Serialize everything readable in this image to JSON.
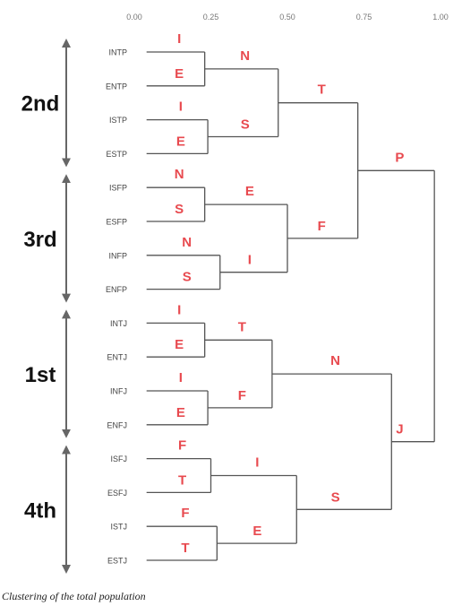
{
  "caption": "Clustering of the total population",
  "chart_data": {
    "type": "dendrogram",
    "xlim": [
      0,
      1
    ],
    "x_ticks": [
      "0.00",
      "0.25",
      "0.50",
      "0.75",
      "1.00"
    ],
    "leaves": [
      "INTP",
      "ENTP",
      "ISTP",
      "ESTP",
      "ISFP",
      "ESFP",
      "INFP",
      "ENFP",
      "INTJ",
      "ENTJ",
      "INFJ",
      "ENFJ",
      "ISFJ",
      "ESFJ",
      "ISTJ",
      "ESTJ"
    ],
    "merges": [
      {
        "id": "m1",
        "left": "INTP",
        "right": "ENTP",
        "height": 0.23,
        "label_top": "I",
        "label_bottom": "E"
      },
      {
        "id": "m2",
        "left": "ISTP",
        "right": "ESTP",
        "height": 0.24,
        "label_top": "I",
        "label_bottom": "E"
      },
      {
        "id": "m3",
        "left": "ISFP",
        "right": "ESFP",
        "height": 0.23,
        "label_top": "N",
        "label_bottom": "S"
      },
      {
        "id": "m4",
        "left": "INFP",
        "right": "ENFP",
        "height": 0.28,
        "label_top": "N",
        "label_bottom": "S"
      },
      {
        "id": "m5",
        "left": "INTJ",
        "right": "ENTJ",
        "height": 0.23,
        "label_top": "I",
        "label_bottom": "E"
      },
      {
        "id": "m6",
        "left": "INFJ",
        "right": "ENFJ",
        "height": 0.24,
        "label_top": "I",
        "label_bottom": "E"
      },
      {
        "id": "m7",
        "left": "ISFJ",
        "right": "ESFJ",
        "height": 0.25,
        "label_top": "F",
        "label_bottom": "T"
      },
      {
        "id": "m8",
        "left": "ISTJ",
        "right": "ESTJ",
        "height": 0.27,
        "label_top": "F",
        "label_bottom": "T"
      },
      {
        "id": "m9",
        "left": "m1",
        "right": "m2",
        "height": 0.47,
        "label_top": "N",
        "label_bottom": "S"
      },
      {
        "id": "m10",
        "left": "m3",
        "right": "m4",
        "height": 0.5,
        "label_top": "E",
        "label_bottom": "I"
      },
      {
        "id": "m11",
        "left": "m5",
        "right": "m6",
        "height": 0.45,
        "label_top": "T",
        "label_bottom": "F"
      },
      {
        "id": "m12",
        "left": "m7",
        "right": "m8",
        "height": 0.53,
        "label_top": "I",
        "label_bottom": "E"
      },
      {
        "id": "m13",
        "left": "m9",
        "right": "m10",
        "height": 0.73,
        "label_top": "T",
        "label_bottom": "F"
      },
      {
        "id": "m14",
        "left": "m11",
        "right": "m12",
        "height": 0.84,
        "label_top": "N",
        "label_bottom": "S"
      },
      {
        "id": "m15",
        "left": "m13",
        "right": "m14",
        "height": 0.98,
        "label_top": "P",
        "label_bottom": "J"
      }
    ],
    "groups": [
      {
        "label": "2nd",
        "first_leaf": 0,
        "last_leaf": 3
      },
      {
        "label": "3rd",
        "first_leaf": 4,
        "last_leaf": 7
      },
      {
        "label": "1st",
        "first_leaf": 8,
        "last_leaf": 11
      },
      {
        "label": "4th",
        "first_leaf": 12,
        "last_leaf": 15
      }
    ],
    "grid": false,
    "colors": {
      "branch": "#555555",
      "split_label": "#e84a4f",
      "arrow": "#666666",
      "text": "#444444",
      "group_label": "#111111"
    }
  }
}
